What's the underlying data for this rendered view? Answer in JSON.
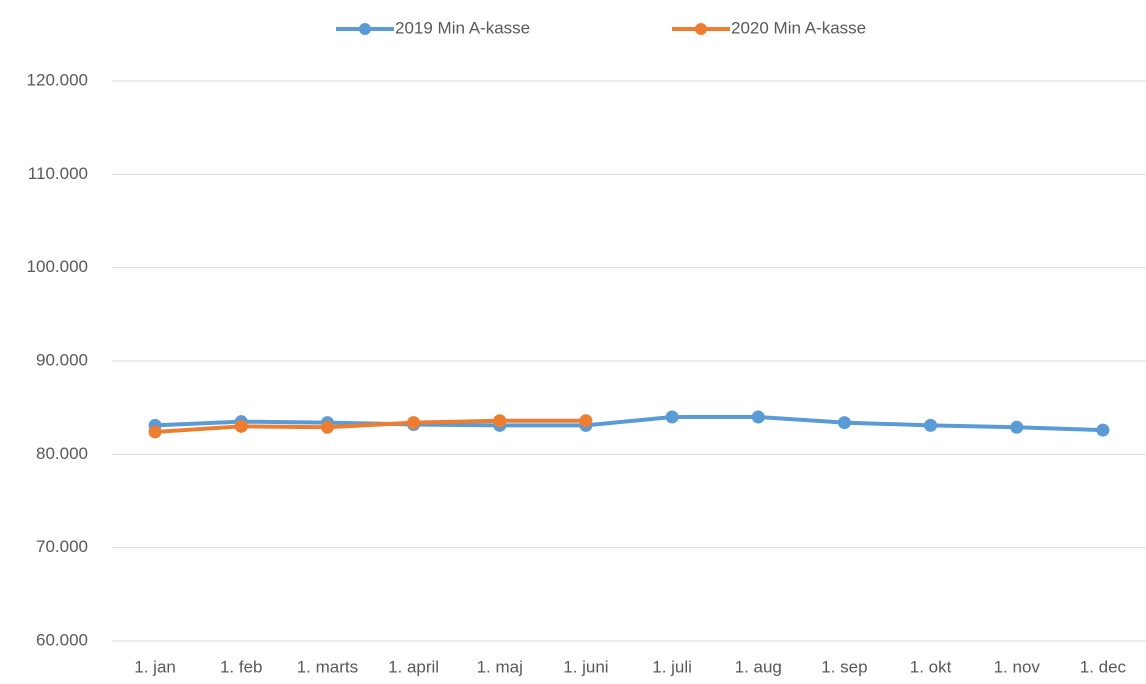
{
  "chart_data": {
    "type": "line",
    "categories": [
      "1. jan",
      "1. feb",
      "1. marts",
      "1. april",
      "1. maj",
      "1. juni",
      "1. juli",
      "1. aug",
      "1. sep",
      "1. okt",
      "1. nov",
      "1. dec"
    ],
    "series": [
      {
        "name": "2019 Min A-kasse",
        "color": "#5b9bd5",
        "values": [
          83100,
          83500,
          83400,
          83200,
          83100,
          83100,
          84000,
          84000,
          83400,
          83100,
          82900,
          82600
        ]
      },
      {
        "name": "2020 Min A-kasse",
        "color": "#ed7d31",
        "values": [
          82400,
          83000,
          82900,
          83400,
          83600,
          83600,
          null,
          null,
          null,
          null,
          null,
          null
        ]
      }
    ],
    "ylim": [
      60000,
      120000
    ],
    "yticks": [
      {
        "value": 60000,
        "label": "60.000"
      },
      {
        "value": 70000,
        "label": "70.000"
      },
      {
        "value": 80000,
        "label": "80.000"
      },
      {
        "value": 90000,
        "label": "90.000"
      },
      {
        "value": 100000,
        "label": "100.000"
      },
      {
        "value": 110000,
        "label": "110.000"
      },
      {
        "value": 120000,
        "label": "120.000"
      }
    ],
    "grid": true,
    "legend": "top"
  }
}
